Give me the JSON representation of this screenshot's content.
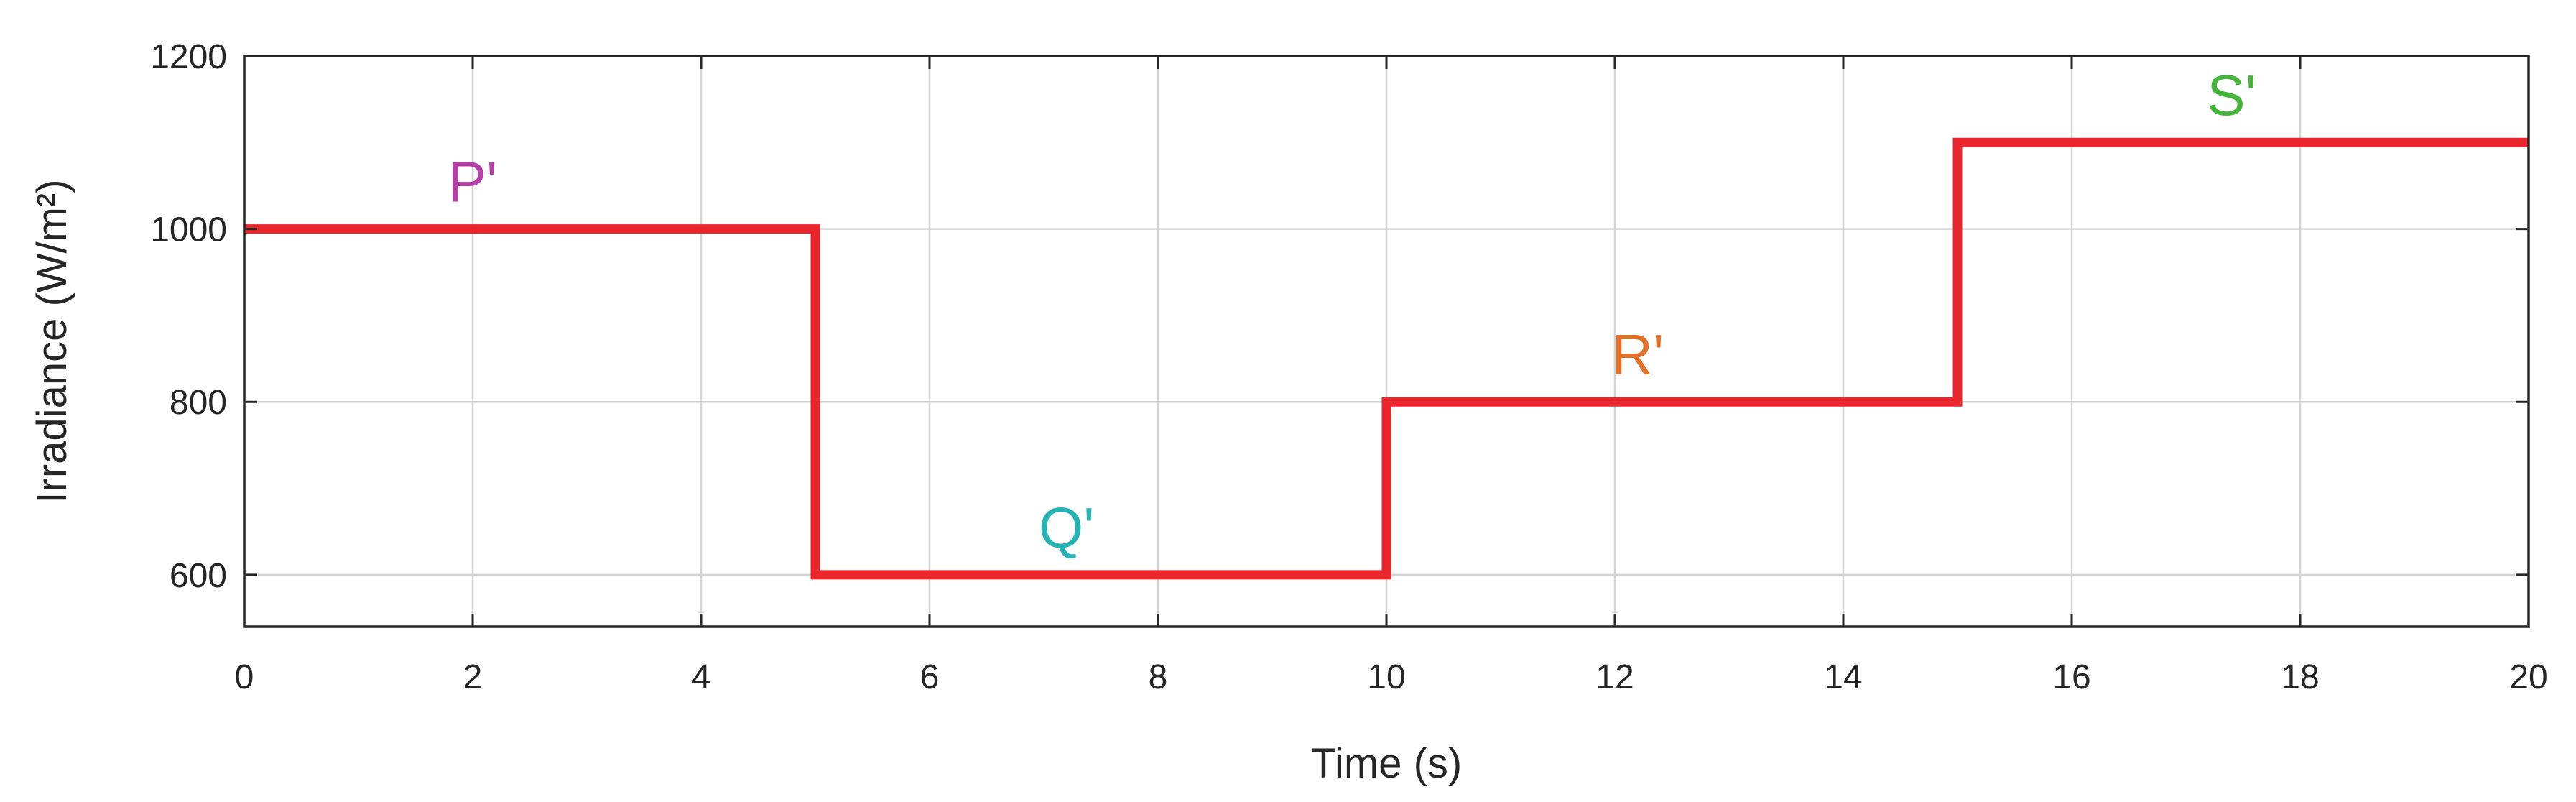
{
  "chart_data": {
    "type": "line",
    "xlabel": "Time (s)",
    "ylabel": "Irradiance (W/m²)",
    "xlim": [
      0,
      20
    ],
    "ylim": [
      540,
      1200
    ],
    "x_ticks": [
      0,
      2,
      4,
      6,
      8,
      10,
      12,
      14,
      16,
      18,
      20
    ],
    "y_ticks": [
      600,
      800,
      1000,
      1200
    ],
    "grid": true,
    "series": [
      {
        "color": "#e8262b",
        "x": [
          0,
          5,
          5,
          10,
          10,
          15,
          15,
          20
        ],
        "y": [
          1000,
          1000,
          600,
          600,
          800,
          800,
          1100,
          1100
        ]
      }
    ],
    "annotations": [
      {
        "text": "P'",
        "x": 2.0,
        "y": 1020,
        "color": "#b53fa6"
      },
      {
        "text": "Q'",
        "x": 7.2,
        "y": 620,
        "color": "#26b3b3"
      },
      {
        "text": "R'",
        "x": 12.2,
        "y": 820,
        "color": "#e0702a"
      },
      {
        "text": "S'",
        "x": 17.4,
        "y": 1120,
        "color": "#44b53a"
      }
    ]
  }
}
